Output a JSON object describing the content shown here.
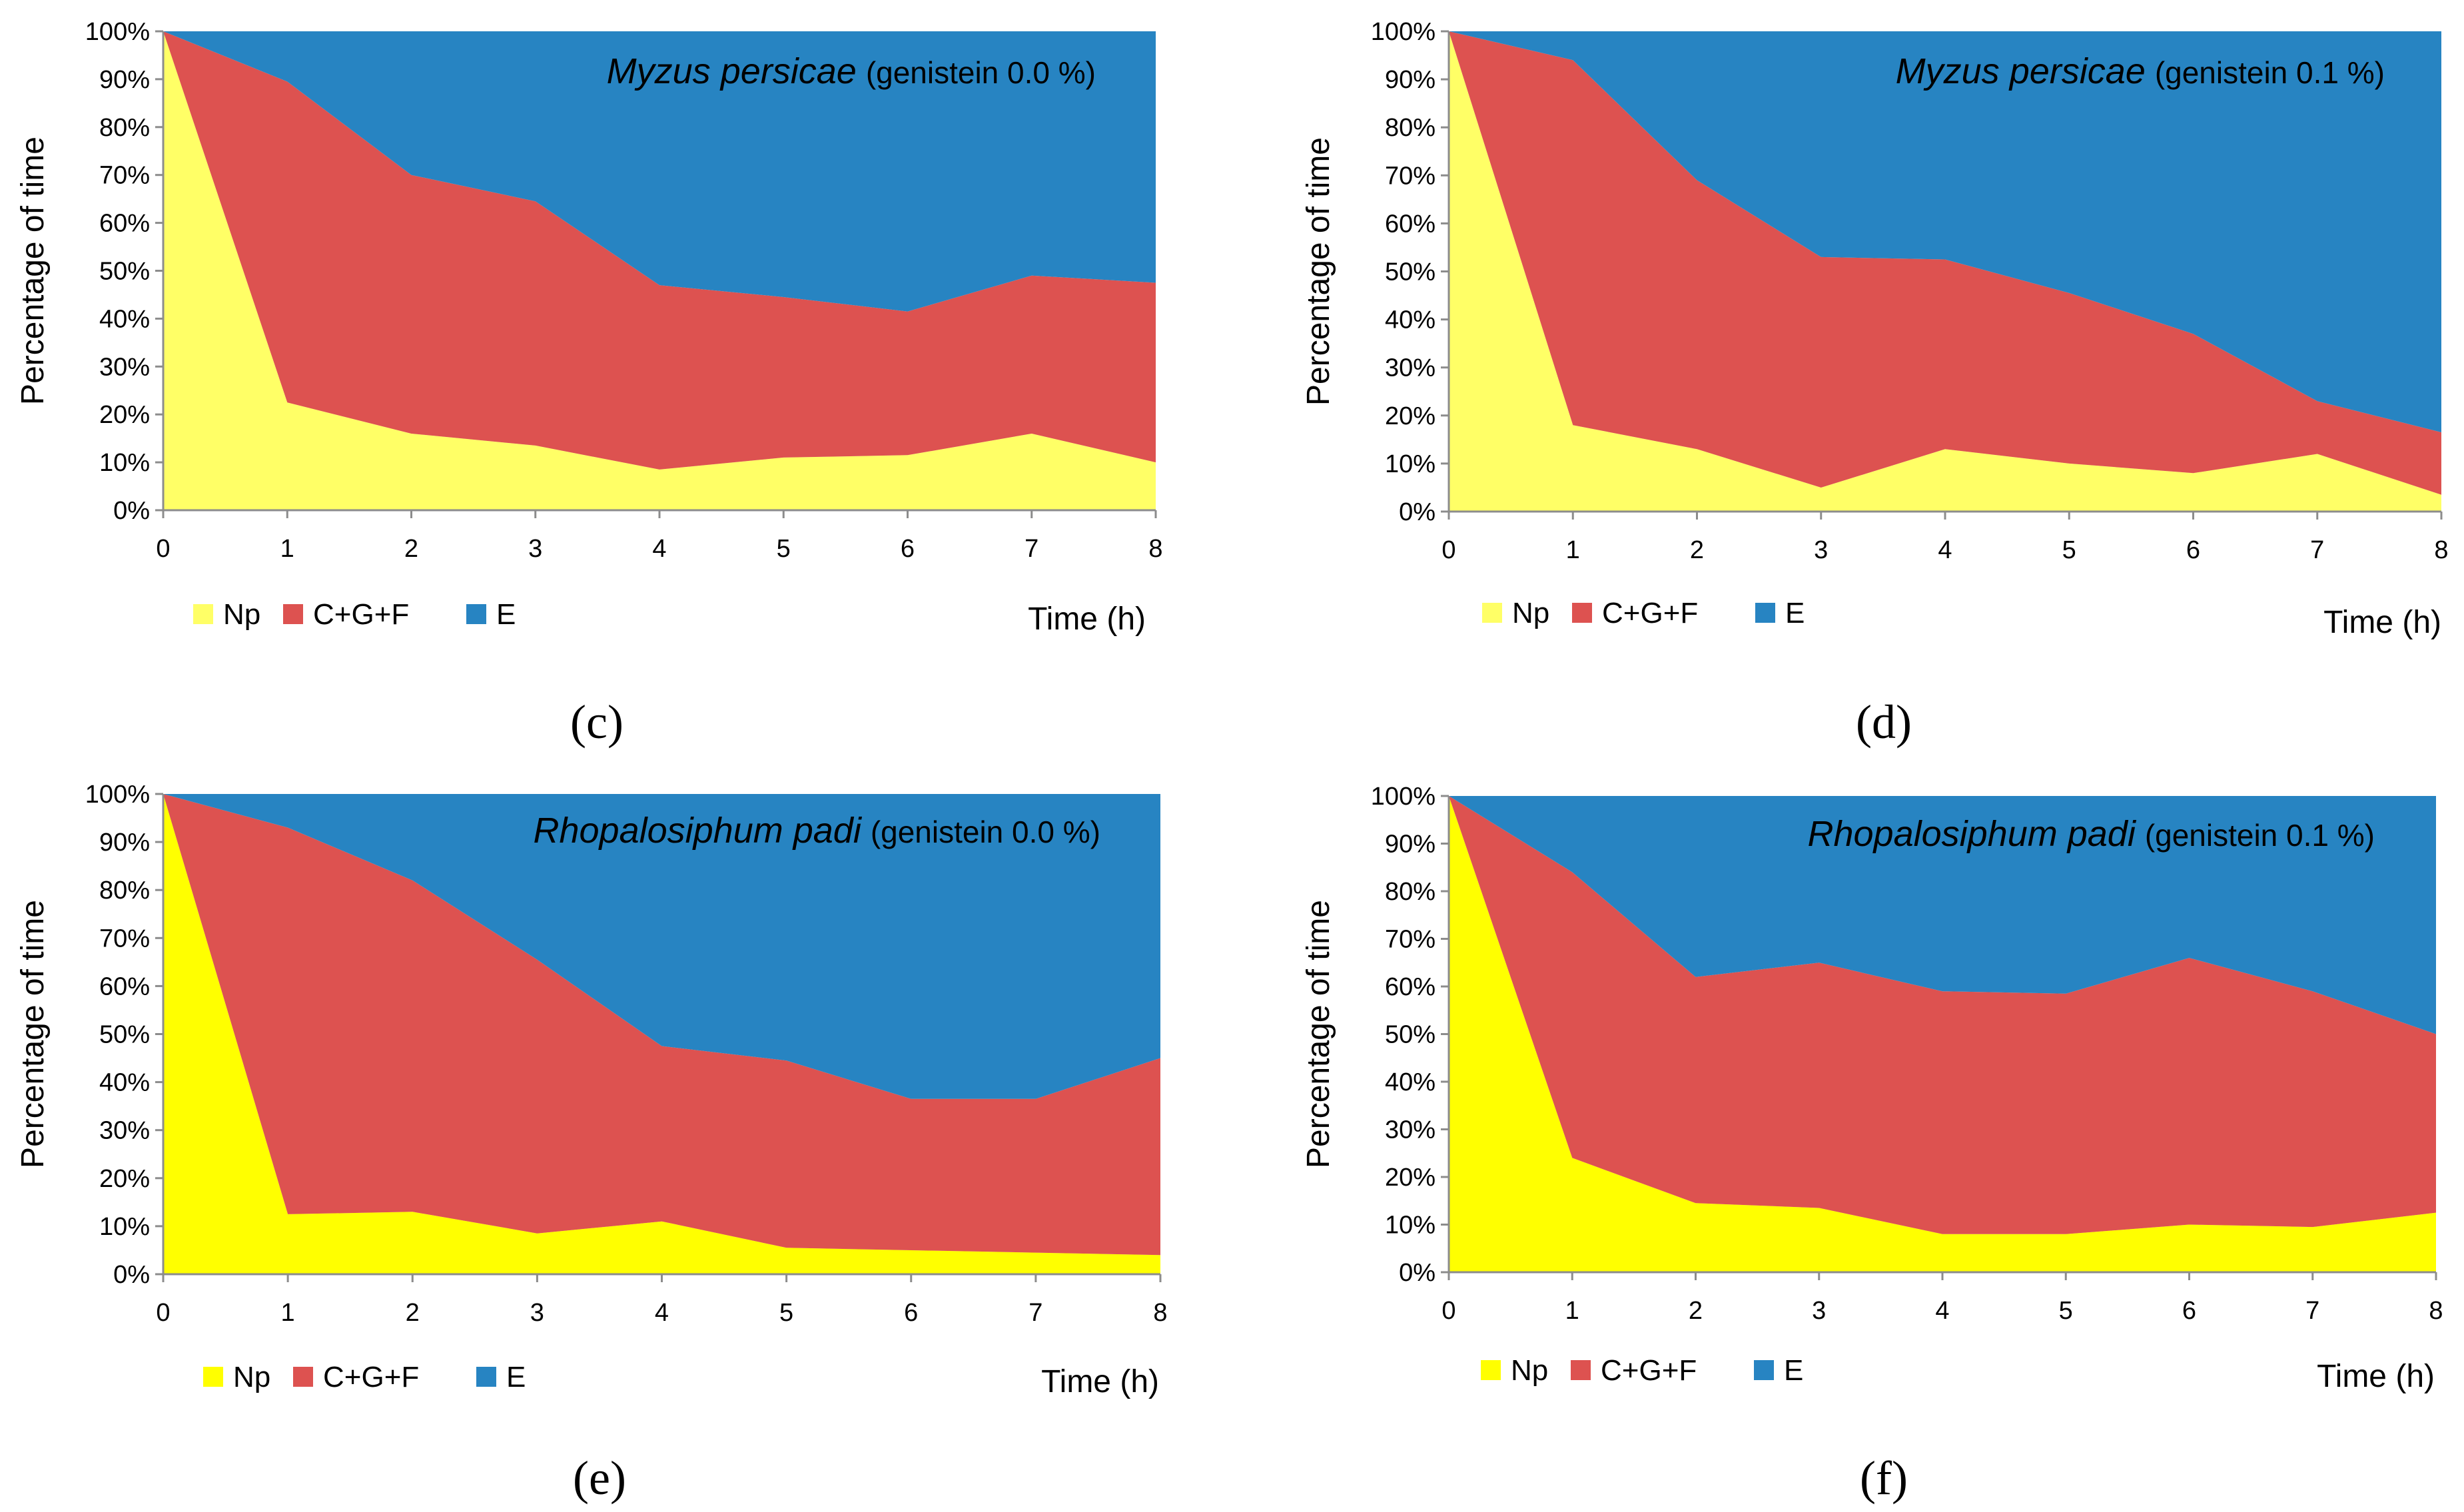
{
  "chart_data": [
    {
      "type": "area",
      "stacked": true,
      "percent": true,
      "panel_label": "(c)",
      "title": {
        "species": "Myzus persicae",
        "condition": "(genistein 0.0 %)"
      },
      "xlabel": "Time (h)",
      "ylabel": "Percentage of time",
      "x": [
        0,
        1,
        2,
        3,
        4,
        5,
        6,
        7,
        8
      ],
      "xlim": [
        0,
        8
      ],
      "ylim": [
        0,
        100
      ],
      "x_ticks": [
        "0",
        "1",
        "2",
        "3",
        "4",
        "5",
        "6",
        "7",
        "8"
      ],
      "y_ticks": [
        "0%",
        "10%",
        "20%",
        "30%",
        "40%",
        "50%",
        "60%",
        "70%",
        "80%",
        "90%",
        "100%"
      ],
      "series": [
        {
          "name": "Np",
          "color": "#ffff66",
          "values": [
            100,
            22.5,
            16,
            13.5,
            8.5,
            11,
            11.5,
            16,
            10
          ]
        },
        {
          "name": "C+G+F",
          "color": "#dd5250",
          "values": [
            0,
            67,
            54,
            51,
            38.5,
            33.5,
            30,
            33,
            37.5
          ]
        },
        {
          "name": "E",
          "color": "#2784c2",
          "values": [
            0,
            10.5,
            30,
            35.5,
            53,
            55.5,
            58.5,
            51,
            52.5
          ]
        }
      ],
      "legend": [
        "Np",
        "C+G+F",
        "E"
      ]
    },
    {
      "type": "area",
      "stacked": true,
      "percent": true,
      "panel_label": "(d)",
      "title": {
        "species": "Myzus persicae",
        "condition": "(genistein 0.1 %)"
      },
      "xlabel": "Time (h)",
      "ylabel": "Percentage of time",
      "x": [
        0,
        1,
        2,
        3,
        4,
        5,
        6,
        7,
        8
      ],
      "xlim": [
        0,
        8
      ],
      "ylim": [
        0,
        100
      ],
      "x_ticks": [
        "0",
        "1",
        "2",
        "3",
        "4",
        "5",
        "6",
        "7",
        "8"
      ],
      "y_ticks": [
        "0%",
        "10%",
        "20%",
        "30%",
        "40%",
        "50%",
        "60%",
        "70%",
        "80%",
        "90%",
        "100%"
      ],
      "series": [
        {
          "name": "Np",
          "color": "#ffff66",
          "values": [
            100,
            18,
            13,
            5,
            13,
            10,
            8,
            12,
            3.5
          ]
        },
        {
          "name": "C+G+F",
          "color": "#dd5250",
          "values": [
            0,
            76,
            56,
            48,
            39.5,
            35.5,
            29,
            11,
            13
          ]
        },
        {
          "name": "E",
          "color": "#2784c2",
          "values": [
            0,
            6,
            31,
            47,
            47.5,
            54.5,
            63,
            77,
            83.5
          ]
        }
      ],
      "legend": [
        "Np",
        "C+G+F",
        "E"
      ]
    },
    {
      "type": "area",
      "stacked": true,
      "percent": true,
      "panel_label": "(e)",
      "title": {
        "species": "Rhopalosiphum padi",
        "condition": "(genistein 0.0 %)"
      },
      "xlabel": "Time (h)",
      "ylabel": "Percentage of time",
      "x": [
        0,
        1,
        2,
        3,
        4,
        5,
        6,
        7,
        8
      ],
      "xlim": [
        0,
        8
      ],
      "ylim": [
        0,
        100
      ],
      "x_ticks": [
        "0",
        "1",
        "2",
        "3",
        "4",
        "5",
        "6",
        "7",
        "8"
      ],
      "y_ticks": [
        "0%",
        "10%",
        "20%",
        "30%",
        "40%",
        "50%",
        "60%",
        "70%",
        "80%",
        "90%",
        "100%"
      ],
      "series": [
        {
          "name": "Np",
          "color": "#ffff00",
          "values": [
            100,
            12.5,
            13,
            8.5,
            11,
            5.5,
            5,
            4.5,
            4
          ]
        },
        {
          "name": "C+G+F",
          "color": "#dd5250",
          "values": [
            0,
            80.5,
            69,
            57,
            36.5,
            39,
            31.5,
            32,
            41
          ]
        },
        {
          "name": "E",
          "color": "#2784c2",
          "values": [
            0,
            7,
            18,
            34.5,
            52.5,
            55.5,
            63.5,
            63.5,
            55
          ]
        }
      ],
      "legend": [
        "Np",
        "C+G+F",
        "E"
      ]
    },
    {
      "type": "area",
      "stacked": true,
      "percent": true,
      "panel_label": "(f)",
      "title": {
        "species": "Rhopalosiphum padi",
        "condition": "(genistein 0.1 %)"
      },
      "xlabel": "Time (h)",
      "ylabel": "Percentage of time",
      "x": [
        0,
        1,
        2,
        3,
        4,
        5,
        6,
        7,
        8
      ],
      "xlim": [
        0,
        8
      ],
      "ylim": [
        0,
        100
      ],
      "x_ticks": [
        "0",
        "1",
        "2",
        "3",
        "4",
        "5",
        "6",
        "7",
        "8"
      ],
      "y_ticks": [
        "0%",
        "10%",
        "20%",
        "30%",
        "40%",
        "50%",
        "60%",
        "70%",
        "80%",
        "90%",
        "100%"
      ],
      "series": [
        {
          "name": "Np",
          "color": "#ffff00",
          "values": [
            100,
            24,
            14.5,
            13.5,
            8,
            8,
            10,
            9.5,
            12.5
          ]
        },
        {
          "name": "C+G+F",
          "color": "#dd5250",
          "values": [
            0,
            60,
            47.5,
            51.5,
            51,
            50.5,
            56,
            49.5,
            37.5
          ]
        },
        {
          "name": "E",
          "color": "#2784c2",
          "values": [
            0,
            16,
            38,
            35,
            41,
            41.5,
            34,
            41,
            50
          ]
        }
      ],
      "legend": [
        "Np",
        "C+G+F",
        "E"
      ]
    }
  ]
}
